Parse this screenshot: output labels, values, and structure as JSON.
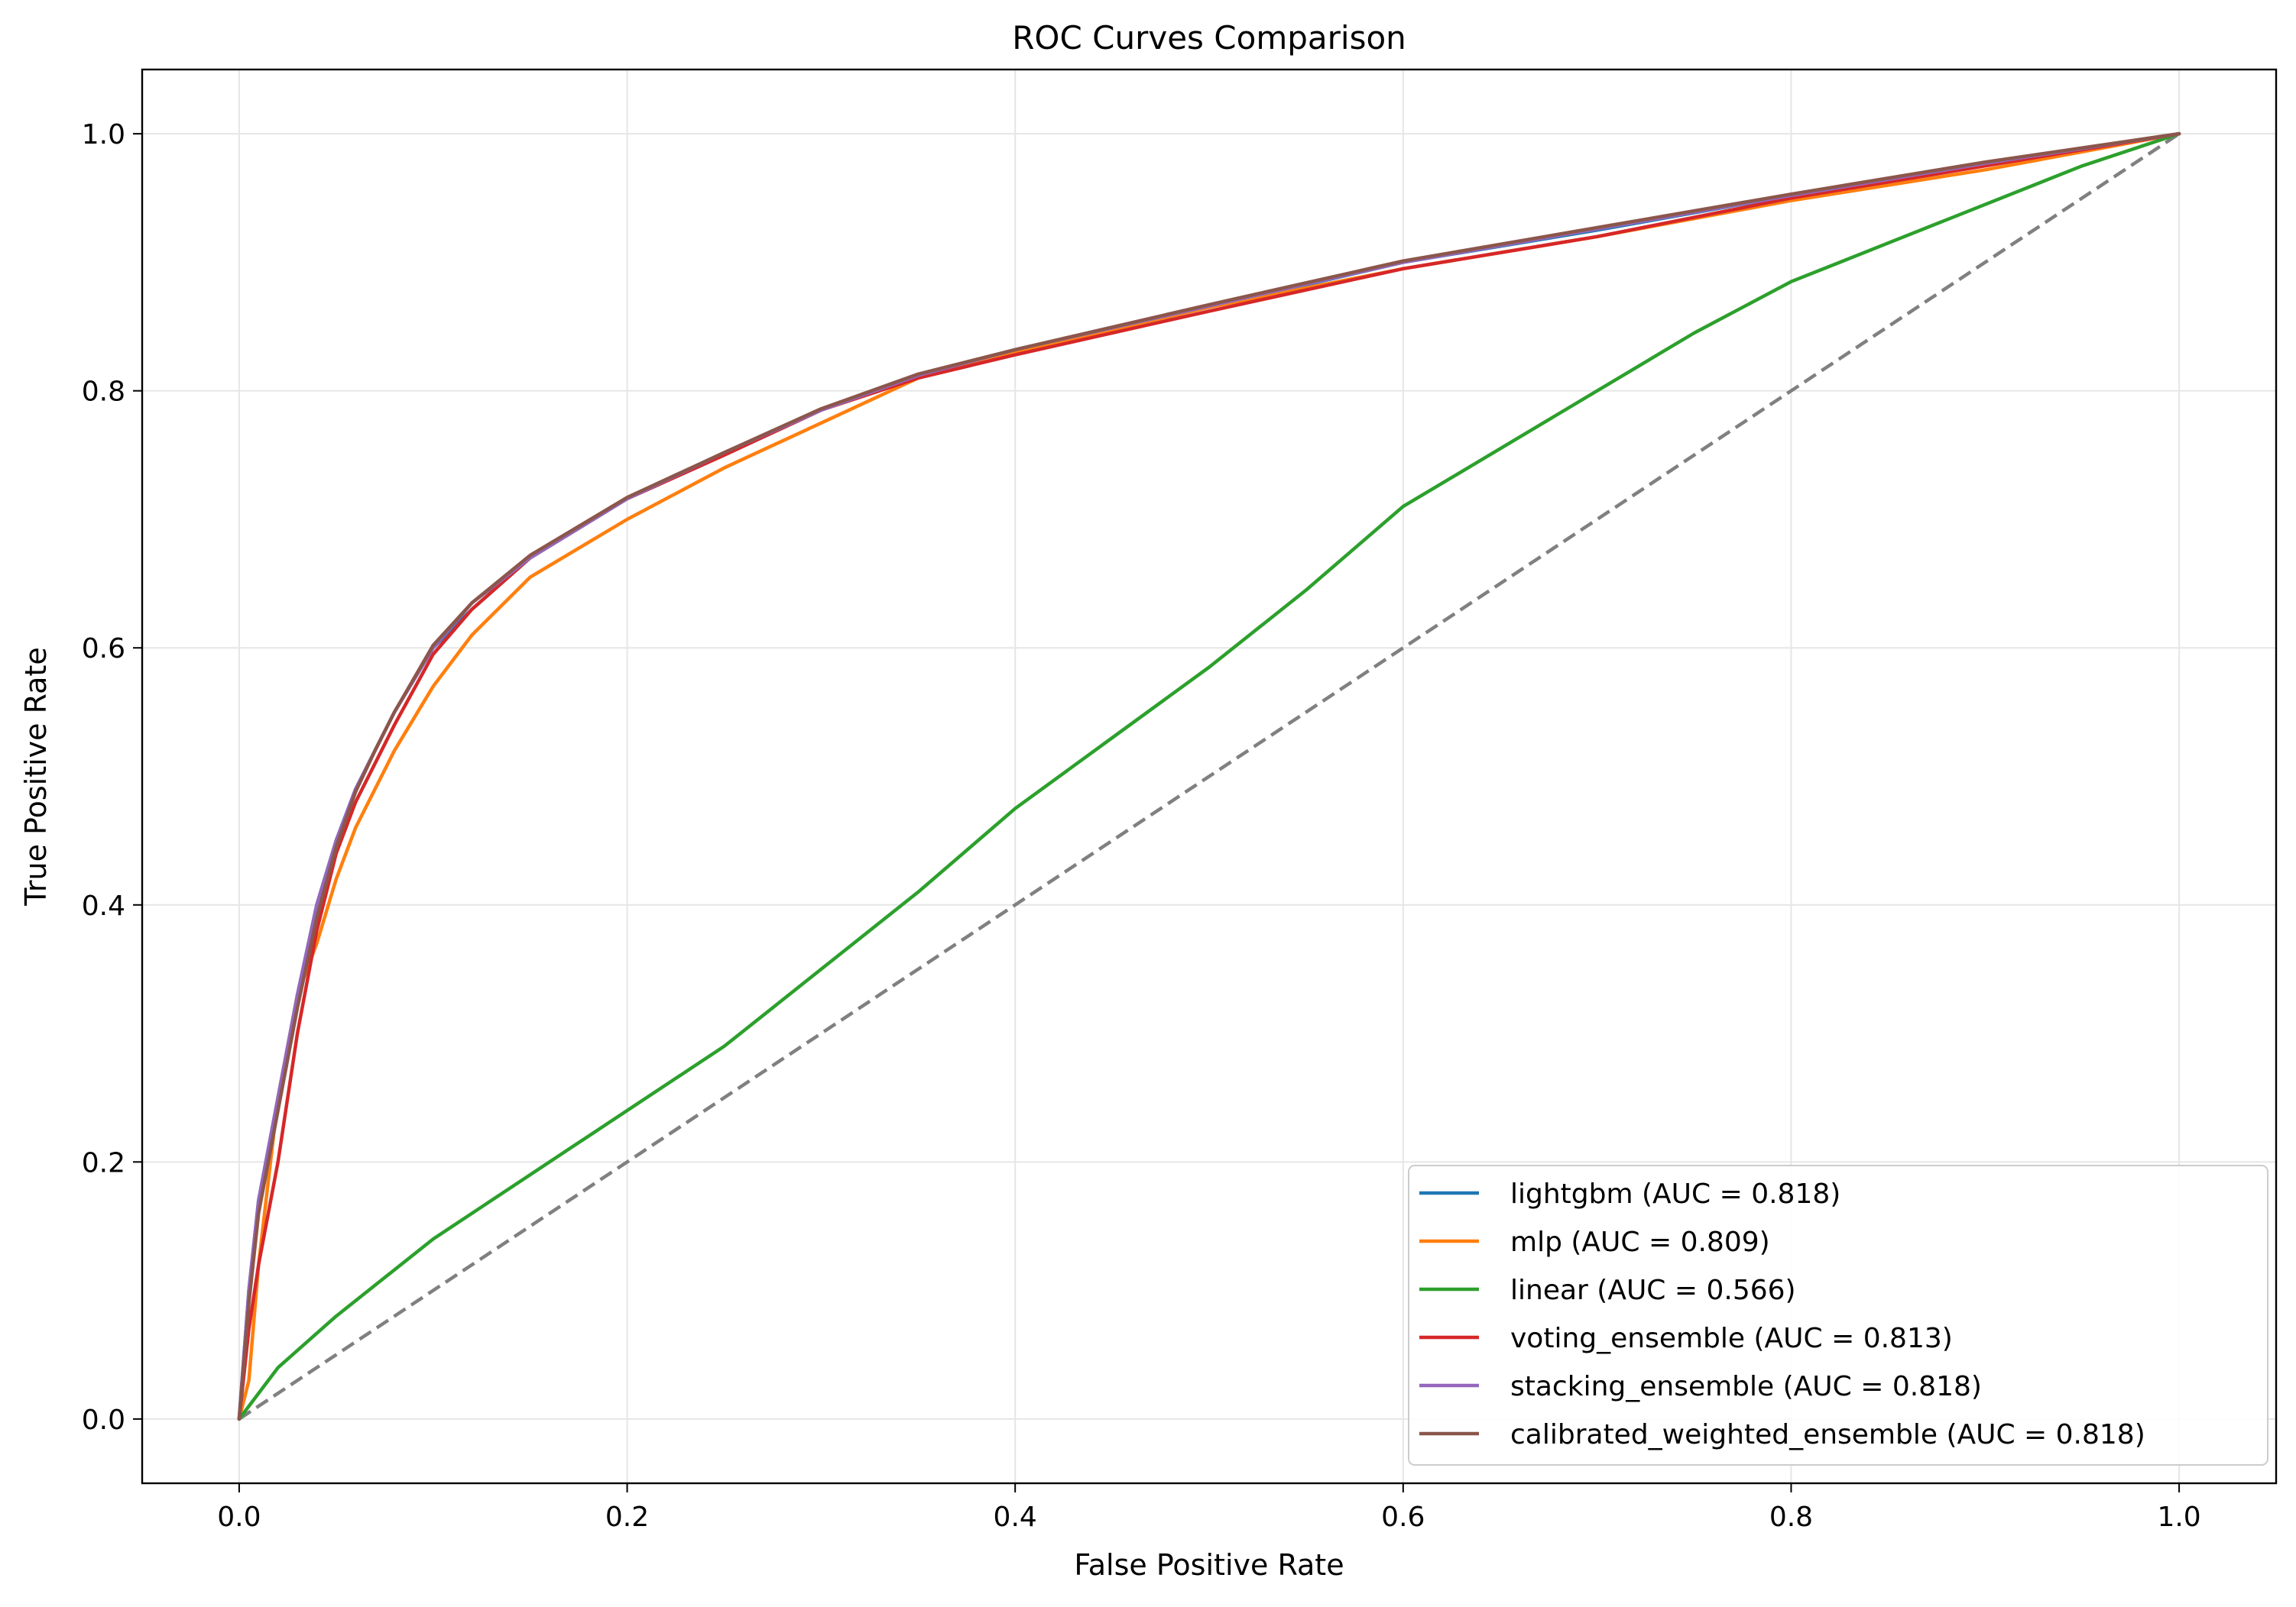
{
  "chart_data": {
    "type": "line",
    "title": "ROC Curves Comparison",
    "xlabel": "False Positive Rate",
    "ylabel": "True Positive Rate",
    "xlim": [
      -0.05,
      1.05
    ],
    "ylim": [
      -0.05,
      1.05
    ],
    "xticks": [
      0.0,
      0.2,
      0.4,
      0.6,
      0.8,
      1.0
    ],
    "xtick_labels": [
      "0.0",
      "0.2",
      "0.4",
      "0.6",
      "0.8",
      "1.0"
    ],
    "yticks": [
      0.0,
      0.2,
      0.4,
      0.6,
      0.8,
      1.0
    ],
    "ytick_labels": [
      "0.0",
      "0.2",
      "0.4",
      "0.6",
      "0.8",
      "1.0"
    ],
    "grid": true,
    "legend_position": "lower-right",
    "series": [
      {
        "name": "lightgbm (AUC = 0.818)",
        "color": "#1f77b4",
        "x": [
          0,
          0.005,
          0.01,
          0.02,
          0.03,
          0.04,
          0.05,
          0.06,
          0.07,
          0.08,
          0.1,
          0.12,
          0.15,
          0.2,
          0.25,
          0.3,
          0.35,
          0.4,
          0.5,
          0.6,
          0.7,
          0.8,
          0.9,
          1.0
        ],
        "y": [
          0,
          0.1,
          0.17,
          0.25,
          0.33,
          0.4,
          0.45,
          0.49,
          0.52,
          0.55,
          0.6,
          0.63,
          0.67,
          0.716,
          0.75,
          0.785,
          0.812,
          0.83,
          0.865,
          0.9,
          0.925,
          0.952,
          0.977,
          1.0
        ]
      },
      {
        "name": "mlp (AUC = 0.809)",
        "color": "#ff7f0e",
        "x": [
          0,
          0.005,
          0.01,
          0.02,
          0.03,
          0.04,
          0.05,
          0.06,
          0.07,
          0.08,
          0.1,
          0.12,
          0.15,
          0.2,
          0.25,
          0.3,
          0.35,
          0.4,
          0.5,
          0.6,
          0.7,
          0.8,
          0.9,
          1.0
        ],
        "y": [
          0,
          0.03,
          0.12,
          0.25,
          0.33,
          0.37,
          0.42,
          0.46,
          0.49,
          0.52,
          0.57,
          0.61,
          0.655,
          0.7,
          0.74,
          0.775,
          0.81,
          0.83,
          0.865,
          0.895,
          0.92,
          0.948,
          0.972,
          1.0
        ]
      },
      {
        "name": "linear (AUC = 0.566)",
        "color": "#2ca02c",
        "x": [
          0,
          0.02,
          0.05,
          0.1,
          0.15,
          0.2,
          0.25,
          0.3,
          0.35,
          0.4,
          0.45,
          0.5,
          0.55,
          0.6,
          0.65,
          0.7,
          0.75,
          0.8,
          0.85,
          0.9,
          0.95,
          0.98,
          1.0
        ],
        "y": [
          0,
          0.04,
          0.08,
          0.14,
          0.19,
          0.24,
          0.29,
          0.35,
          0.41,
          0.475,
          0.53,
          0.585,
          0.645,
          0.71,
          0.755,
          0.8,
          0.845,
          0.885,
          0.915,
          0.945,
          0.975,
          0.99,
          1.0
        ]
      },
      {
        "name": "voting_ensemble (AUC = 0.813)",
        "color": "#d62728",
        "x": [
          0,
          0.005,
          0.01,
          0.02,
          0.03,
          0.04,
          0.05,
          0.06,
          0.07,
          0.08,
          0.1,
          0.12,
          0.15,
          0.2,
          0.25,
          0.3,
          0.35,
          0.4,
          0.5,
          0.6,
          0.7,
          0.8,
          0.9,
          1.0
        ],
        "y": [
          0,
          0.07,
          0.12,
          0.2,
          0.3,
          0.38,
          0.44,
          0.48,
          0.51,
          0.54,
          0.595,
          0.63,
          0.67,
          0.716,
          0.75,
          0.785,
          0.81,
          0.828,
          0.862,
          0.895,
          0.92,
          0.95,
          0.975,
          1.0
        ]
      },
      {
        "name": "stacking_ensemble (AUC = 0.818)",
        "color": "#9467bd",
        "x": [
          0,
          0.005,
          0.01,
          0.02,
          0.03,
          0.04,
          0.05,
          0.06,
          0.07,
          0.08,
          0.1,
          0.12,
          0.15,
          0.2,
          0.25,
          0.3,
          0.35,
          0.4,
          0.5,
          0.6,
          0.7,
          0.8,
          0.9,
          1.0
        ],
        "y": [
          0,
          0.1,
          0.17,
          0.25,
          0.33,
          0.4,
          0.45,
          0.49,
          0.52,
          0.55,
          0.6,
          0.635,
          0.67,
          0.716,
          0.752,
          0.785,
          0.812,
          0.832,
          0.866,
          0.9,
          0.926,
          0.952,
          0.977,
          1.0
        ]
      },
      {
        "name": "calibrated_weighted_ensemble (AUC = 0.818)",
        "color": "#8c564b",
        "x": [
          0,
          0.005,
          0.01,
          0.02,
          0.03,
          0.04,
          0.05,
          0.06,
          0.07,
          0.08,
          0.1,
          0.12,
          0.15,
          0.2,
          0.25,
          0.3,
          0.35,
          0.4,
          0.5,
          0.6,
          0.7,
          0.8,
          0.9,
          1.0
        ],
        "y": [
          0,
          0.09,
          0.16,
          0.24,
          0.32,
          0.39,
          0.445,
          0.488,
          0.52,
          0.55,
          0.602,
          0.635,
          0.672,
          0.717,
          0.752,
          0.786,
          0.813,
          0.832,
          0.867,
          0.901,
          0.927,
          0.953,
          0.978,
          1.0
        ]
      }
    ],
    "reference_line": {
      "color": "#808080",
      "x": [
        0,
        1
      ],
      "y": [
        0,
        1
      ]
    }
  }
}
